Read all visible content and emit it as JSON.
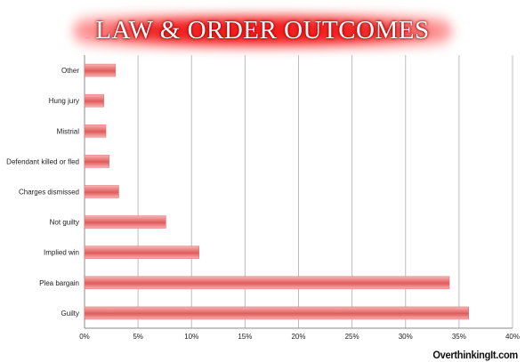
{
  "title": "LAW & ORDER OUTCOMES",
  "watermark": "OverthinkingIt.com",
  "colors": {
    "bar_top": "#f8b3b3",
    "bar_bottom": "#e15a5a",
    "title_glow": "#ee2020",
    "grid": "#bdbdbd"
  },
  "chart_data": {
    "type": "bar",
    "orientation": "horizontal",
    "categories": [
      "Other",
      "Hung jury",
      "Mistrial",
      "Defendant killed or fled",
      "Charges dismissed",
      "Not guilty",
      "Implied win",
      "Plea bargain",
      "Guilty"
    ],
    "values": [
      0.029,
      0.018,
      0.02,
      0.023,
      0.032,
      0.076,
      0.107,
      0.341,
      0.359
    ],
    "xlim": [
      0,
      0.4
    ],
    "x_ticks": [
      "0%",
      "5%",
      "10%",
      "15%",
      "20%",
      "25%",
      "30%",
      "35%",
      "40%"
    ],
    "title": "LAW & ORDER OUTCOMES",
    "grid": "vertical",
    "legend": "none"
  }
}
